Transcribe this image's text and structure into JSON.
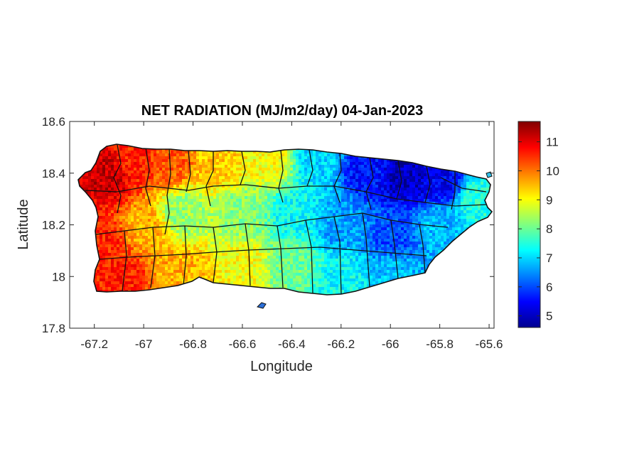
{
  "chart_data": {
    "type": "heatmap",
    "title": "NET RADIATION (MJ/m2/day) 04-Jan-2023",
    "xlabel": "Longitude",
    "ylabel": "Latitude",
    "xlim": [
      -67.3,
      -65.58
    ],
    "ylim": [
      17.8,
      18.6
    ],
    "xticks": [
      -67.2,
      -67,
      -66.8,
      -66.6,
      -66.4,
      -66.2,
      -66,
      -65.8,
      -65.6
    ],
    "xtick_labels": [
      "-67.2",
      "-67",
      "-66.8",
      "-66.6",
      "-66.4",
      "-66.2",
      "-66",
      "-65.8",
      "-65.6"
    ],
    "yticks": [
      17.8,
      18,
      18.2,
      18.4,
      18.6
    ],
    "ytick_labels": [
      "17.8",
      "18",
      "18.2",
      "18.4",
      "18.6"
    ],
    "colorbar": {
      "colormap": "jet",
      "range": [
        4.6,
        11.7
      ],
      "ticks": [
        5,
        6,
        7,
        8,
        9,
        10,
        11
      ],
      "tick_labels": [
        "5",
        "6",
        "7",
        "8",
        "9",
        "10",
        "11"
      ]
    },
    "region": "Puerto Rico",
    "spatial_pattern": [
      {
        "lon": -67.15,
        "lat": 18.4,
        "value": 11.2
      },
      {
        "lon": -67.05,
        "lat": 18.45,
        "value": 10.6
      },
      {
        "lon": -66.9,
        "lat": 18.45,
        "value": 10.2
      },
      {
        "lon": -66.7,
        "lat": 18.45,
        "value": 9.4
      },
      {
        "lon": -66.5,
        "lat": 18.45,
        "value": 9.0
      },
      {
        "lon": -66.3,
        "lat": 18.45,
        "value": 7.0
      },
      {
        "lon": -66.1,
        "lat": 18.42,
        "value": 5.6
      },
      {
        "lon": -65.95,
        "lat": 18.4,
        "value": 5.0
      },
      {
        "lon": -65.8,
        "lat": 18.37,
        "value": 5.4
      },
      {
        "lon": -65.65,
        "lat": 18.3,
        "value": 7.5
      },
      {
        "lon": -67.18,
        "lat": 18.15,
        "value": 10.6
      },
      {
        "lon": -67.0,
        "lat": 18.2,
        "value": 9.6
      },
      {
        "lon": -66.85,
        "lat": 18.25,
        "value": 8.3
      },
      {
        "lon": -66.6,
        "lat": 18.25,
        "value": 8.2
      },
      {
        "lon": -66.4,
        "lat": 18.25,
        "value": 7.3
      },
      {
        "lon": -66.2,
        "lat": 18.2,
        "value": 6.6
      },
      {
        "lon": -66.0,
        "lat": 18.15,
        "value": 6.0
      },
      {
        "lon": -65.8,
        "lat": 18.2,
        "value": 6.8
      },
      {
        "lon": -67.1,
        "lat": 18.0,
        "value": 10.6
      },
      {
        "lon": -66.85,
        "lat": 18.02,
        "value": 9.6
      },
      {
        "lon": -66.6,
        "lat": 18.05,
        "value": 9.0
      },
      {
        "lon": -66.4,
        "lat": 18.05,
        "value": 8.0
      },
      {
        "lon": -66.2,
        "lat": 18.0,
        "value": 7.3
      },
      {
        "lon": -66.0,
        "lat": 18.02,
        "value": 6.8
      }
    ]
  }
}
